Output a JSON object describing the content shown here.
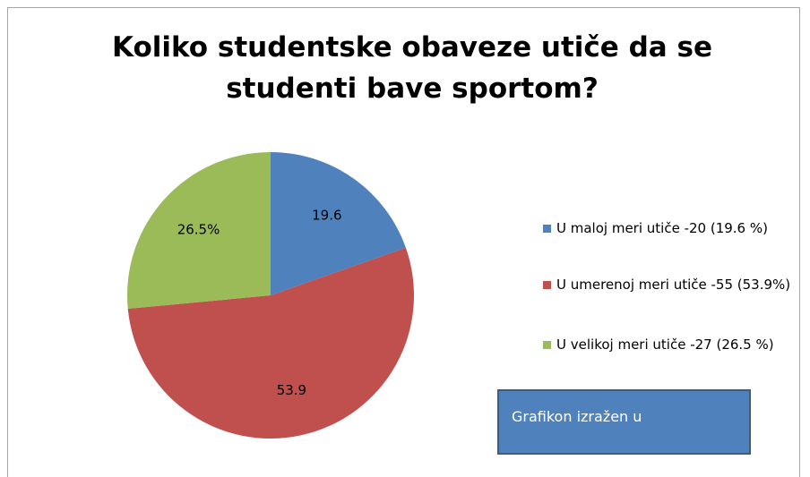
{
  "chart_data": {
    "type": "pie",
    "title": "Koliko studentske obaveze utiče da se studenti bave sportom?",
    "categories": [
      "U maloj meri utiče -20 (19.6 %)",
      "U umerenoj meri utiče -55 (53.9%)",
      "U velikoj meri utiče -27 (26.5 %)"
    ],
    "values": [
      19.6,
      53.9,
      26.5
    ],
    "value_labels": [
      "19.6",
      "53.9",
      "26.5%"
    ],
    "colors": [
      "#4f81bd",
      "#c0504d",
      "#9bbb59"
    ],
    "legend": "right",
    "annotation": "Grafikon izražen u"
  }
}
